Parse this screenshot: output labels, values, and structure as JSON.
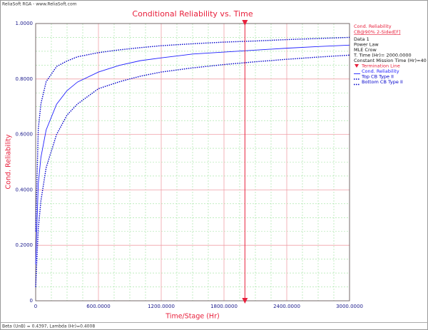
{
  "chart_data": {
    "type": "line",
    "header": "ReliaSoft RGA - www.ReliaSoft.com",
    "title": "Conditional Reliability vs. Time",
    "x_label": "Time/Stage (Hr)",
    "y_label": "Cond. Reliability",
    "footer": "Beta (UnB) = 0.4397, Lambda (Hr)=0.4008",
    "legend_title": "Cond. Reliability",
    "legend_subtitle": "CB@90% 2-Sided[F]",
    "info": [
      "Data 1",
      "Power Law",
      "MLE Crow",
      "T. Time (Hr)= 2000.0000",
      "Constant Mission Time (Hr)=40"
    ],
    "termination_line": {
      "name": "Termination Line",
      "value": 2000,
      "color": "#e8203c"
    },
    "x": [
      0,
      25,
      50,
      100,
      200,
      300,
      400,
      600,
      800,
      1000,
      1200,
      1500,
      1800,
      2100,
      2400,
      2700,
      3000
    ],
    "series": [
      {
        "name": "Cond. Reliability",
        "color": "#2020ff",
        "dashed": false,
        "values": [
          0.131,
          0.422,
          0.517,
          0.616,
          0.709,
          0.758,
          0.789,
          0.825,
          0.849,
          0.866,
          0.876,
          0.89,
          0.897,
          0.904,
          0.911,
          0.917,
          0.922
        ]
      },
      {
        "name": "Top CB Type II",
        "color": "#0000cc",
        "dashed": true,
        "values": [
          0.25,
          0.62,
          0.71,
          0.79,
          0.845,
          0.865,
          0.88,
          0.895,
          0.905,
          0.913,
          0.92,
          0.927,
          0.933,
          0.937,
          0.942,
          0.946,
          0.95
        ]
      },
      {
        "name": "Bottom CB Type II",
        "color": "#0000cc",
        "dashed": true,
        "values": [
          0.05,
          0.26,
          0.36,
          0.48,
          0.6,
          0.67,
          0.71,
          0.765,
          0.79,
          0.81,
          0.825,
          0.84,
          0.852,
          0.862,
          0.871,
          0.879,
          0.886
        ]
      }
    ],
    "xlim": [
      0,
      3000
    ],
    "xticks": [
      0,
      {
        "value": 600,
        "label": "600.0000"
      },
      {
        "value": 1200,
        "label": "1200.0000"
      },
      {
        "value": 1800,
        "label": "1800.0000"
      },
      {
        "value": 2400,
        "label": "2400.0000"
      },
      {
        "value": 3000,
        "label": "3000.0000"
      }
    ],
    "ylim": [
      0,
      1
    ],
    "yticks": [
      0,
      {
        "value": 0.2,
        "label": "0.2000"
      },
      {
        "value": 0.4,
        "label": "0.4000"
      },
      {
        "value": 0.6,
        "label": "0.6000"
      },
      {
        "value": 0.8,
        "label": "0.8000"
      },
      {
        "value": 1,
        "label": "1.0000"
      }
    ],
    "xminor": [
      150,
      300,
      450,
      750,
      900,
      1050,
      1350,
      1500,
      1650,
      1950,
      2100,
      2250,
      2550,
      2700,
      2850
    ],
    "yminor": [
      0.05,
      0.1,
      0.15,
      0.25,
      0.3,
      0.35,
      0.45,
      0.5,
      0.55,
      0.65,
      0.7,
      0.75,
      0.85,
      0.9,
      0.95
    ],
    "grid": true
  }
}
